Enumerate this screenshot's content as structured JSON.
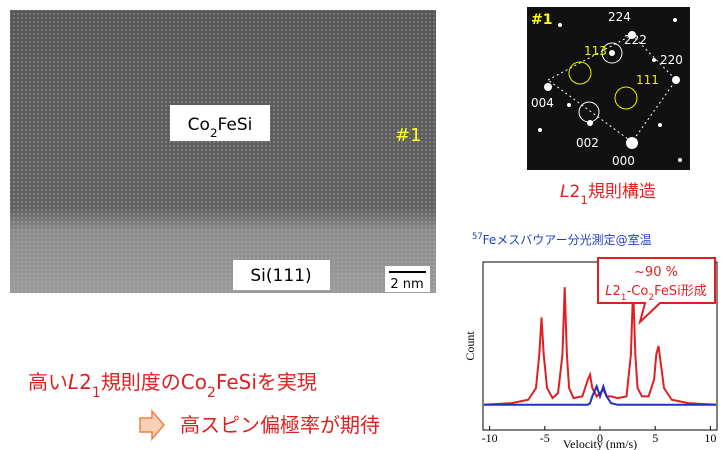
{
  "tem_image": {
    "material_label": [
      "Co",
      "2",
      "FeSi"
    ],
    "sample_id": "#1",
    "substrate_label": "Si(111)",
    "scale_bar": "2 nm"
  },
  "diffraction": {
    "sample_id": "#1",
    "spot_labels": [
      "224",
      "222",
      "220",
      "113",
      "111",
      "004",
      "002",
      "000"
    ],
    "caption": [
      "L",
      "2",
      "1",
      "規則構造"
    ]
  },
  "summary": {
    "line1": [
      "高い",
      "L",
      "2",
      "1",
      "規則度のCo",
      "2",
      "FeSiを実現"
    ],
    "line2": "高スピン偏極率が期待"
  },
  "chart_data": {
    "type": "line",
    "title": [
      "57",
      "Feメスバウアー分光測定@室温"
    ],
    "annotation": {
      "line1": "~90 %",
      "line2": [
        "L",
        "2",
        "1",
        "-Co",
        "2",
        "FeSi形成"
      ]
    },
    "x_label": "Velocity (nm/s)",
    "y_label": "Count",
    "x": [
      -10.5,
      -8,
      -6.5,
      -5.8,
      -5.5,
      -5.3,
      -5.1,
      -4.8,
      -4.3,
      -3.8,
      -3.4,
      -3.2,
      -3.0,
      -2.8,
      -2.4,
      -1.6,
      -1.1,
      -0.9,
      -0.7,
      -0.3,
      0,
      0.3,
      0.6,
      1.0,
      1.6,
      2.4,
      2.8,
      3.0,
      3.2,
      3.4,
      3.8,
      4.4,
      4.9,
      5.1,
      5.3,
      5.5,
      5.8,
      6.5,
      8,
      10.5
    ],
    "series": [
      {
        "color": "#e02020",
        "values": [
          0.15,
          0.16,
          0.18,
          0.25,
          0.45,
          0.67,
          0.45,
          0.25,
          0.19,
          0.22,
          0.45,
          0.85,
          0.45,
          0.25,
          0.19,
          0.2,
          0.3,
          0.33,
          0.25,
          0.2,
          0.22,
          0.24,
          0.2,
          0.2,
          0.19,
          0.2,
          0.45,
          0.85,
          0.45,
          0.25,
          0.2,
          0.2,
          0.3,
          0.45,
          0.5,
          0.4,
          0.25,
          0.18,
          0.16,
          0.15
        ]
      },
      {
        "color": "#2030c0",
        "values": [
          0.15,
          0.15,
          0.15,
          0.15,
          0.15,
          0.15,
          0.15,
          0.15,
          0.15,
          0.15,
          0.15,
          0.15,
          0.15,
          0.15,
          0.15,
          0.15,
          0.15,
          0.16,
          0.2,
          0.26,
          0.2,
          0.26,
          0.2,
          0.16,
          0.15,
          0.15,
          0.15,
          0.15,
          0.15,
          0.15,
          0.15,
          0.15,
          0.15,
          0.15,
          0.15,
          0.15,
          0.15,
          0.15,
          0.15,
          0.15
        ]
      }
    ],
    "xlim": [
      -10.6,
      10.6
    ],
    "ylim": [
      0,
      1
    ],
    "xticks": [
      -10,
      -5,
      0,
      5,
      10
    ]
  }
}
